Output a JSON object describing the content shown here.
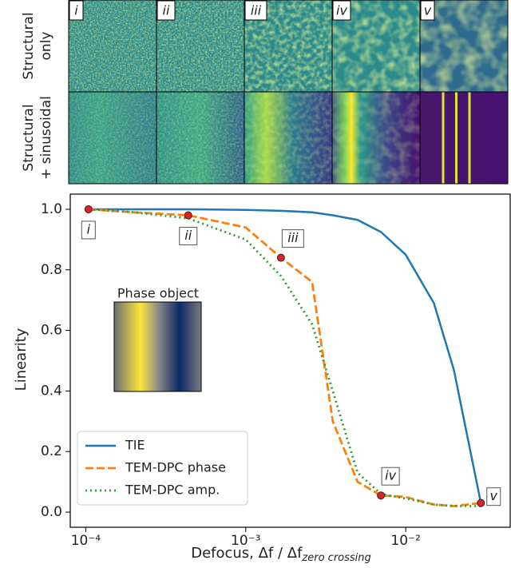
{
  "panels": {
    "columns": [
      "i",
      "ii",
      "iii",
      "iv",
      "v"
    ],
    "rows": [
      [
        "Structural",
        "only"
      ],
      [
        "Structural",
        "+ sinusoidal"
      ]
    ]
  },
  "chart_data": {
    "type": "line",
    "xlabel": "Defocus, Δf / Δf",
    "xlabel_subscript": "zero crossing",
    "ylabel": "Linearity",
    "x": [
      0.000104,
      0.0002,
      0.000437,
      0.001,
      0.00166,
      0.0026,
      0.0035,
      0.005,
      0.007,
      0.01,
      0.015,
      0.02,
      0.0295
    ],
    "series": [
      {
        "name": "TIE",
        "color": "#1f77b4",
        "values": [
          1.0,
          1.0,
          1.0,
          0.998,
          0.995,
          0.99,
          0.98,
          0.965,
          0.925,
          0.85,
          0.69,
          0.47,
          0.03
        ]
      },
      {
        "name": "TEM-DPC phase",
        "color": "#ff7f0e",
        "values": [
          1.0,
          0.99,
          0.98,
          0.94,
          0.84,
          0.76,
          0.3,
          0.1,
          0.055,
          0.05,
          0.025,
          0.02,
          0.03
        ]
      },
      {
        "name": "TEM-DPC amp.",
        "color": "#2ca02c",
        "values": [
          1.0,
          0.99,
          0.97,
          0.9,
          0.78,
          0.62,
          0.4,
          0.13,
          0.06,
          0.045,
          0.025,
          0.02,
          0.02
        ]
      }
    ],
    "markers": {
      "color": "#d62728",
      "x": [
        0.000104,
        0.000437,
        0.00166,
        0.007,
        0.0295
      ],
      "values": [
        1.0,
        0.98,
        0.84,
        0.055,
        0.03
      ],
      "labels": [
        "i",
        "ii",
        "iii",
        "iv",
        "v"
      ]
    },
    "xscale": "log",
    "xlim": [
      8e-05,
      0.045
    ],
    "xticks": [
      {
        "value": 0.0001,
        "label": "10⁻⁴"
      },
      {
        "value": 0.001,
        "label": "10⁻³"
      },
      {
        "value": 0.01,
        "label": "10⁻²"
      }
    ],
    "ylim": [
      -0.05,
      1.05
    ],
    "yticks": [
      {
        "value": 0,
        "label": "0.0"
      },
      {
        "value": 0.2,
        "label": "0.2"
      },
      {
        "value": 0.4,
        "label": "0.4"
      },
      {
        "value": 0.6,
        "label": "0.6"
      },
      {
        "value": 0.8,
        "label": "0.8"
      },
      {
        "value": 1,
        "label": "1.0"
      }
    ],
    "legend": "lower left",
    "inset": {
      "title": "Phase object"
    }
  }
}
